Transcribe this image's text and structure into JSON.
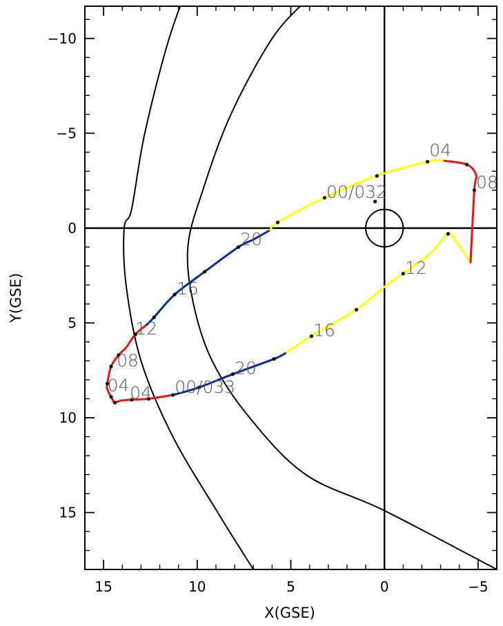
{
  "chart_data": {
    "type": "line",
    "xlabel": "X(GSE)",
    "ylabel": "Y(GSE)",
    "xlim": [
      16,
      -6
    ],
    "ylim": [
      -11.7,
      18
    ],
    "x_ticks": [
      15,
      10,
      5,
      0,
      -5
    ],
    "y_ticks": [
      -10,
      -5,
      0,
      5,
      10,
      15
    ],
    "x_tick_labels": [
      "15",
      "10",
      "5",
      "0",
      "−5"
    ],
    "y_tick_labels": [
      "−10",
      "−5",
      "0",
      "5",
      "10",
      "15"
    ],
    "colors": {
      "axis": "#000000",
      "boundary": "#000000",
      "segments": {
        "yellow": "#ffff00",
        "red": "#ee1111",
        "blue": "#0a2a9c"
      },
      "label_text": "#555555"
    },
    "earth": {
      "x": 0,
      "y": 0,
      "radius": 1
    },
    "boundaries": [
      {
        "points": [
          [
            10.1,
            -13.8
          ],
          [
            11.5,
            -10
          ],
          [
            12.8,
            -5
          ],
          [
            13.5,
            -1
          ],
          [
            13.9,
            0
          ],
          [
            13.8,
            3
          ],
          [
            13.0,
            7
          ],
          [
            11.3,
            11
          ],
          [
            8.9,
            15
          ],
          [
            7.0,
            18
          ]
        ]
      },
      {
        "points": [
          [
            4.2,
            -12.0
          ],
          [
            6.0,
            -10
          ],
          [
            8.2,
            -6
          ],
          [
            9.7,
            -2
          ],
          [
            10.5,
            1
          ],
          [
            10.2,
            4
          ],
          [
            9.2,
            7
          ],
          [
            7.2,
            10
          ],
          [
            4.2,
            13
          ],
          [
            0,
            14.9
          ],
          [
            -6,
            18
          ]
        ]
      }
    ],
    "orbit_segments": [
      {
        "color": "yellow",
        "points": [
          [
            -4.6,
            1.8
          ],
          [
            -3.9,
            0.8
          ],
          [
            -3.4,
            0.3
          ],
          [
            -2.5,
            1.3
          ],
          [
            -1.0,
            2.4
          ],
          [
            0,
            3.1
          ],
          [
            1.5,
            4.3
          ],
          [
            3.9,
            5.7
          ],
          [
            5.3,
            6.6
          ]
        ]
      },
      {
        "color": "blue",
        "points": [
          [
            5.3,
            6.6
          ],
          [
            5.9,
            6.9
          ],
          [
            8.1,
            7.7
          ],
          [
            9.9,
            8.4
          ],
          [
            11.3,
            8.8
          ]
        ]
      },
      {
        "color": "red",
        "points": [
          [
            11.3,
            8.8
          ],
          [
            12.6,
            9.0
          ],
          [
            13.5,
            9.05
          ],
          [
            14.1,
            9.1
          ],
          [
            14.4,
            9.2
          ],
          [
            14.6,
            8.9
          ],
          [
            14.8,
            8.5
          ],
          [
            14.8,
            8.2
          ],
          [
            14.6,
            7.3
          ],
          [
            14.2,
            6.7
          ],
          [
            13.8,
            6.3
          ],
          [
            13.3,
            5.6
          ],
          [
            12.7,
            5.1
          ]
        ]
      },
      {
        "color": "blue",
        "points": [
          [
            12.7,
            5.1
          ],
          [
            12.3,
            4.7
          ],
          [
            11.2,
            3.5
          ],
          [
            9.6,
            2.3
          ],
          [
            7.8,
            1.0
          ],
          [
            7.0,
            0.6
          ],
          [
            6.1,
            0.1
          ]
        ]
      },
      {
        "color": "yellow",
        "points": [
          [
            6.1,
            0.1
          ],
          [
            5.7,
            -0.3
          ],
          [
            3.2,
            -1.6
          ],
          [
            0.4,
            -2.75
          ],
          [
            -2.3,
            -3.5
          ],
          [
            -3.2,
            -3.55
          ]
        ]
      },
      {
        "color": "red",
        "points": [
          [
            -3.2,
            -3.55
          ],
          [
            -4.4,
            -3.35
          ],
          [
            -4.9,
            -2.8
          ],
          [
            -4.8,
            -2.0
          ],
          [
            -4.6,
            1.8
          ]
        ]
      }
    ],
    "hour_marks": [
      [
        -4.8,
        -2.0
      ],
      [
        -4.4,
        -3.35
      ],
      [
        -2.3,
        -3.5
      ],
      [
        0.4,
        -2.75
      ],
      [
        3.2,
        -1.6
      ],
      [
        5.7,
        -0.3
      ],
      [
        7.8,
        1.0
      ],
      [
        9.6,
        2.3
      ],
      [
        11.2,
        3.5
      ],
      [
        12.3,
        4.7
      ],
      [
        13.3,
        5.6
      ],
      [
        14.2,
        6.7
      ],
      [
        14.6,
        7.3
      ],
      [
        14.8,
        8.2
      ],
      [
        14.6,
        8.9
      ],
      [
        14.4,
        9.2
      ],
      [
        13.5,
        9.05
      ],
      [
        12.6,
        9.0
      ],
      [
        11.3,
        8.8
      ],
      [
        9.9,
        8.4
      ],
      [
        8.1,
        7.7
      ],
      [
        5.9,
        6.9
      ],
      [
        3.9,
        5.7
      ],
      [
        1.5,
        4.3
      ],
      [
        -1.0,
        2.4
      ],
      [
        -3.4,
        0.3
      ],
      [
        0.5,
        -1.4
      ]
    ],
    "labels": [
      {
        "text": "04",
        "x": -2.4,
        "y": -3.8
      },
      {
        "text": "08",
        "x": -4.9,
        "y": -2.1
      },
      {
        "text": "00/032",
        "x": 3.1,
        "y": -1.6
      },
      {
        "text": "12",
        "x": -1.1,
        "y": 2.4
      },
      {
        "text": "20",
        "x": 7.7,
        "y": 0.9
      },
      {
        "text": "16",
        "x": 11.1,
        "y": 3.5
      },
      {
        "text": "16",
        "x": 3.8,
        "y": 5.7
      },
      {
        "text": "12",
        "x": 13.3,
        "y": 5.6
      },
      {
        "text": "08",
        "x": 14.3,
        "y": 7.3
      },
      {
        "text": "20",
        "x": 8.0,
        "y": 7.7
      },
      {
        "text": "04",
        "x": 14.8,
        "y": 8.6
      },
      {
        "text": "04",
        "x": 13.6,
        "y": 9.0
      },
      {
        "text": "00/033",
        "x": 11.2,
        "y": 8.7
      }
    ]
  }
}
